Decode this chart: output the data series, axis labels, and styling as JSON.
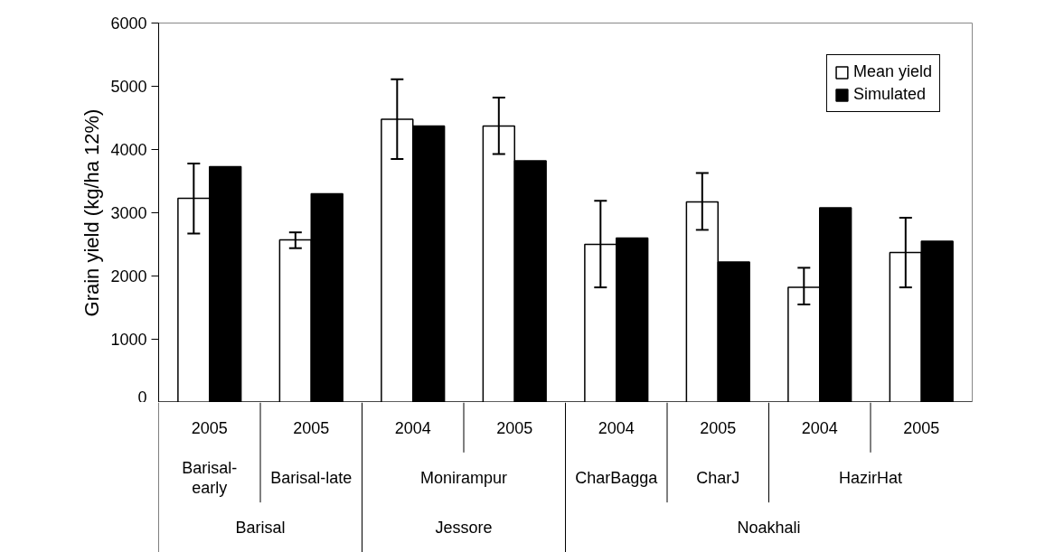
{
  "chart_data": {
    "type": "bar",
    "ylabel": "Grain yield (kg/ha 12%)",
    "categories": [
      "2005",
      "2005",
      "2004",
      "2005",
      "2004",
      "2005",
      "2004",
      "2005"
    ],
    "series": [
      {
        "name": "Mean yield",
        "color": "#ffffff",
        "values": [
          3230,
          2570,
          4480,
          4370,
          2500,
          3170,
          1820,
          2370
        ],
        "errors": [
          [
            2670,
            3780
          ],
          [
            2440,
            2690
          ],
          [
            3850,
            5110
          ],
          [
            3930,
            4820
          ],
          [
            1820,
            3190
          ],
          [
            2730,
            3630
          ],
          [
            1550,
            2130
          ],
          [
            1820,
            2920
          ]
        ]
      },
      {
        "name": "Simulated",
        "color": "#000000",
        "values": [
          3730,
          3300,
          4370,
          3820,
          2600,
          2220,
          3080,
          2550
        ]
      }
    ],
    "annotations": [
      "Barisal-\nearly",
      "Barisal-late",
      "Monirampur",
      "CharBagga",
      "CharJ",
      "HazirHat",
      "Barisal",
      "Jessore",
      "Noakhali"
    ],
    "ylim": [
      0,
      6000
    ],
    "yticks": [
      0,
      1000,
      2000,
      3000,
      4000,
      5000,
      6000
    ],
    "grid": false,
    "legend": "top right"
  }
}
